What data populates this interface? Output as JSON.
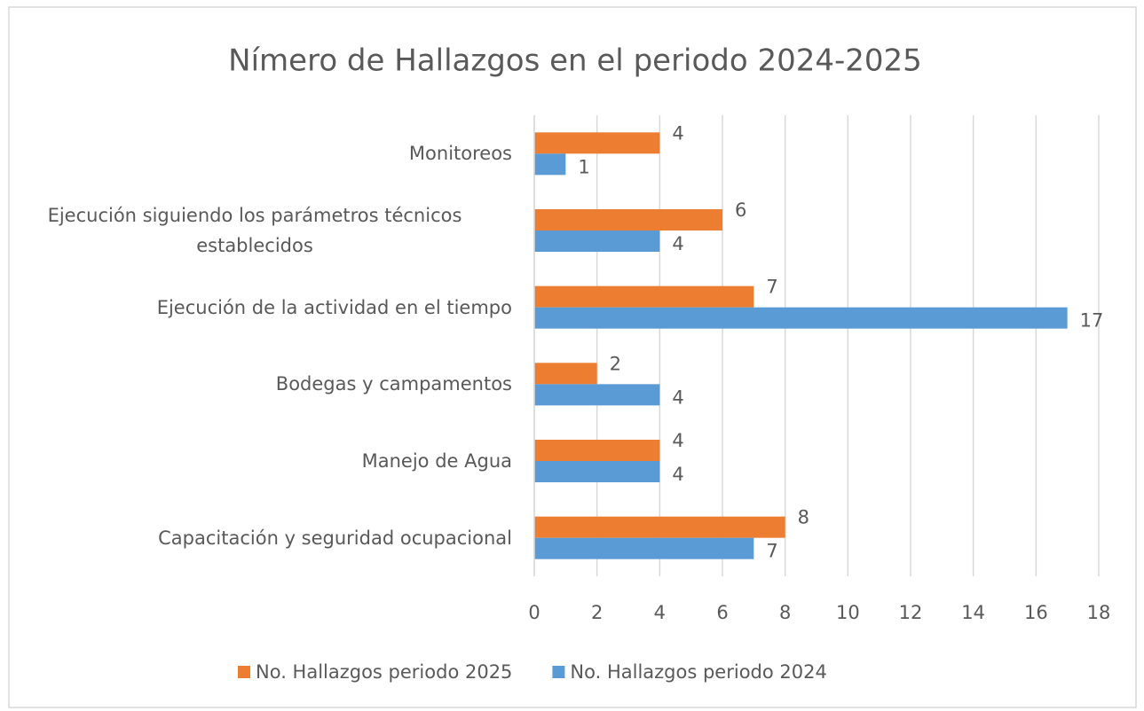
{
  "chart_data": {
    "type": "barh",
    "title": "Nímero de Hallazgos en el periodo 2024-2025",
    "categories": [
      "Monitoreos",
      "Ejecución siguiendo los parámetros técnicos establecidos",
      "Ejecución de la actividad en el tiempo",
      "Bodegas y campamentos",
      "Manejo de Agua",
      "Capacitación y seguridad ocupacional"
    ],
    "series": [
      {
        "name": "No. Hallazgos periodo 2025",
        "color": "#ed7d31",
        "values": [
          4,
          6,
          7,
          2,
          4,
          8
        ]
      },
      {
        "name": "No. Hallazgos periodo 2024",
        "color": "#5b9bd5",
        "values": [
          1,
          4,
          17,
          4,
          4,
          7
        ]
      }
    ],
    "xlim": [
      0,
      18
    ],
    "xticks": [
      0,
      2,
      4,
      6,
      8,
      10,
      12,
      14,
      16,
      18
    ],
    "grid": true,
    "legend": "bottom"
  }
}
